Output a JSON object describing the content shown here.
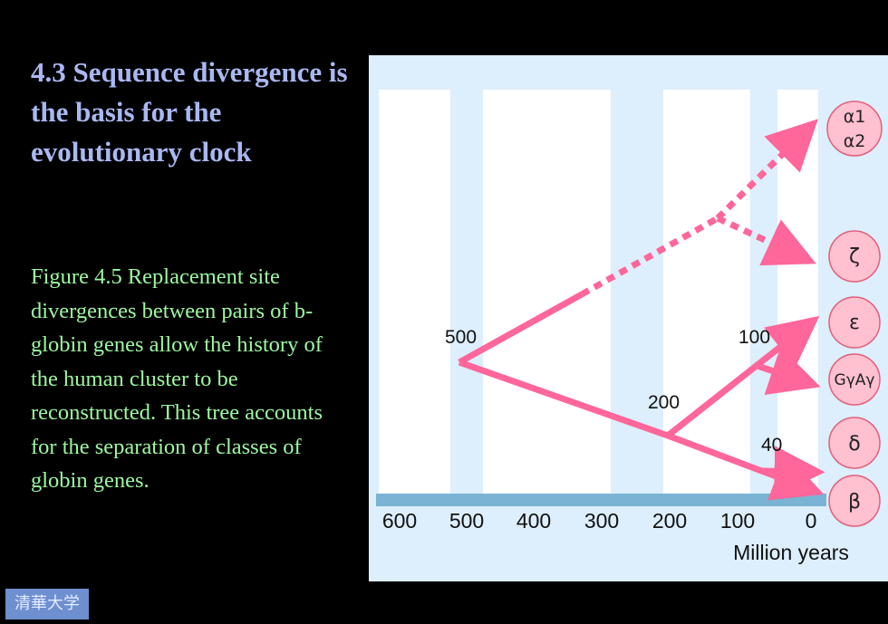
{
  "slide": {
    "title": "4.3 Sequence divergence is the basis for the evolutionary clock",
    "caption": "Figure 4.5 Replacement site divergences between pairs of b-globin genes allow the history of the human cluster to be reconstructed. This tree accounts for the separation of classes of globin genes.",
    "logo_text": "清華大学"
  },
  "figure": {
    "axis_ticks": [
      "600",
      "500",
      "400",
      "300",
      "200",
      "100",
      "0"
    ],
    "axis_label": "Million years",
    "node_labels": {
      "n500": "500",
      "n200": "200",
      "n100": "100",
      "n40": "40"
    },
    "genes": {
      "alpha1": "α1",
      "alpha2": "α2",
      "zeta": "ζ",
      "epsilon": "ε",
      "gamma": "GγAγ",
      "delta": "δ",
      "beta": "β"
    },
    "colors": {
      "branch": "#ff6699",
      "node": "#ffc0d0",
      "node_stroke": "#e0607a",
      "panel": "#ddeefc",
      "column": "#ffffff",
      "axis_bar": "#7ab3d4"
    }
  }
}
